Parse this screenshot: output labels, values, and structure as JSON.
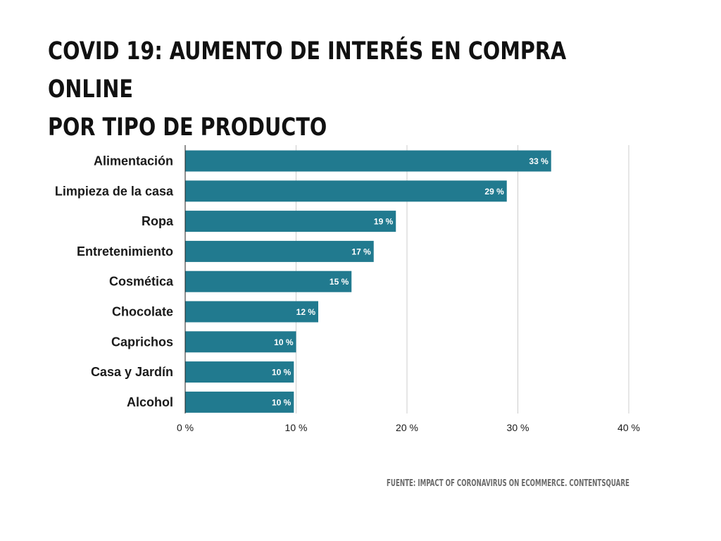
{
  "title_line1": "COVID 19: AUMENTO DE INTERÉS EN COMPRA ONLINE",
  "title_line2": "POR TIPO DE PRODUCTO",
  "source": "FUENTE: IMPACT OF CORONAVIRUS ON ECOMMERCE. CONTENTSQUARE",
  "colors": {
    "bar": "#217a8f",
    "grid": "#cccccc",
    "axis": "#222222"
  },
  "chart_data": {
    "type": "bar",
    "orientation": "horizontal",
    "categories": [
      "Alimentación",
      "Limpieza de la casa",
      "Ropa",
      "Entretenimiento",
      "Cosmética",
      "Chocolate",
      "Caprichos",
      "Casa y Jardín",
      "Alcohol"
    ],
    "values": [
      33,
      29,
      19,
      17,
      15,
      12,
      10,
      9.8,
      9.8
    ],
    "value_labels": [
      "33 %",
      "29 %",
      "19 %",
      "17 %",
      "15 %",
      "12 %",
      "10 %",
      "10 %",
      "10 %"
    ],
    "xlim": [
      0,
      40
    ],
    "x_ticks": [
      0,
      10,
      20,
      30,
      40
    ],
    "x_tick_labels": [
      "0 %",
      "10 %",
      "20 %",
      "30 %",
      "40 %"
    ],
    "grid": true
  }
}
